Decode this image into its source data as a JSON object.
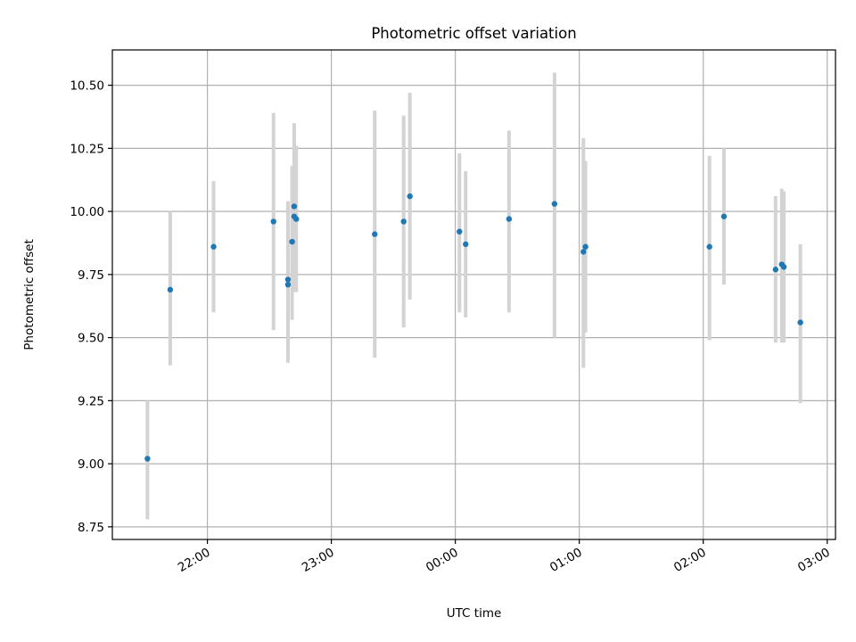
{
  "chart_data": {
    "type": "scatter",
    "title": "Photometric offset variation",
    "xlabel": "UTC time",
    "ylabel": "Photometric offset",
    "x_axis_kind": "time",
    "x_range": [
      "21:14",
      "03:04"
    ],
    "x_ticks": [
      "22:00",
      "23:00",
      "00:00",
      "01:00",
      "02:00",
      "03:00"
    ],
    "ylim": [
      8.7,
      10.64
    ],
    "y_ticks": [
      "8.75",
      "9.00",
      "9.25",
      "9.50",
      "9.75",
      "10.00",
      "10.25",
      "10.50"
    ],
    "grid": true,
    "legend": "none",
    "colors": {
      "point": "#1f77b4",
      "error_bar": "#d3d3d3",
      "grid": "#b0b0b0"
    },
    "points": [
      {
        "x": "21:31",
        "y": 9.02,
        "yerr_low": 8.78,
        "yerr_high": 9.25
      },
      {
        "x": "21:42",
        "y": 9.69,
        "yerr_low": 9.39,
        "yerr_high": 10.0
      },
      {
        "x": "22:03",
        "y": 9.86,
        "yerr_low": 9.6,
        "yerr_high": 10.12
      },
      {
        "x": "22:32",
        "y": 9.96,
        "yerr_low": 9.53,
        "yerr_high": 10.39
      },
      {
        "x": "22:39",
        "y": 9.73,
        "yerr_low": 9.44,
        "yerr_high": 10.04
      },
      {
        "x": "22:39",
        "y": 9.71,
        "yerr_low": 9.4,
        "yerr_high": 10.01
      },
      {
        "x": "22:41",
        "y": 9.88,
        "yerr_low": 9.57,
        "yerr_high": 10.18
      },
      {
        "x": "22:42",
        "y": 9.98,
        "yerr_low": 9.7,
        "yerr_high": 10.27
      },
      {
        "x": "22:42",
        "y": 10.02,
        "yerr_low": 9.68,
        "yerr_high": 10.35
      },
      {
        "x": "22:43",
        "y": 9.97,
        "yerr_low": 9.68,
        "yerr_high": 10.26
      },
      {
        "x": "23:21",
        "y": 9.91,
        "yerr_low": 9.42,
        "yerr_high": 10.4
      },
      {
        "x": "23:35",
        "y": 9.96,
        "yerr_low": 9.54,
        "yerr_high": 10.38
      },
      {
        "x": "23:38",
        "y": 10.06,
        "yerr_low": 9.65,
        "yerr_high": 10.47
      },
      {
        "x": "00:02",
        "y": 9.92,
        "yerr_low": 9.6,
        "yerr_high": 10.23
      },
      {
        "x": "00:05",
        "y": 9.87,
        "yerr_low": 9.58,
        "yerr_high": 10.16
      },
      {
        "x": "00:26",
        "y": 9.97,
        "yerr_low": 9.6,
        "yerr_high": 10.32
      },
      {
        "x": "00:48",
        "y": 10.03,
        "yerr_low": 9.5,
        "yerr_high": 10.55
      },
      {
        "x": "01:02",
        "y": 9.84,
        "yerr_low": 9.38,
        "yerr_high": 10.29
      },
      {
        "x": "01:03",
        "y": 9.86,
        "yerr_low": 9.52,
        "yerr_high": 10.2
      },
      {
        "x": "02:03",
        "y": 9.86,
        "yerr_low": 9.49,
        "yerr_high": 10.22
      },
      {
        "x": "02:10",
        "y": 9.98,
        "yerr_low": 9.71,
        "yerr_high": 10.25
      },
      {
        "x": "02:35",
        "y": 9.77,
        "yerr_low": 9.48,
        "yerr_high": 10.06
      },
      {
        "x": "02:38",
        "y": 9.79,
        "yerr_low": 9.48,
        "yerr_high": 10.09
      },
      {
        "x": "02:39",
        "y": 9.78,
        "yerr_low": 9.48,
        "yerr_high": 10.08
      },
      {
        "x": "02:47",
        "y": 9.56,
        "yerr_low": 9.24,
        "yerr_high": 9.87
      }
    ]
  }
}
